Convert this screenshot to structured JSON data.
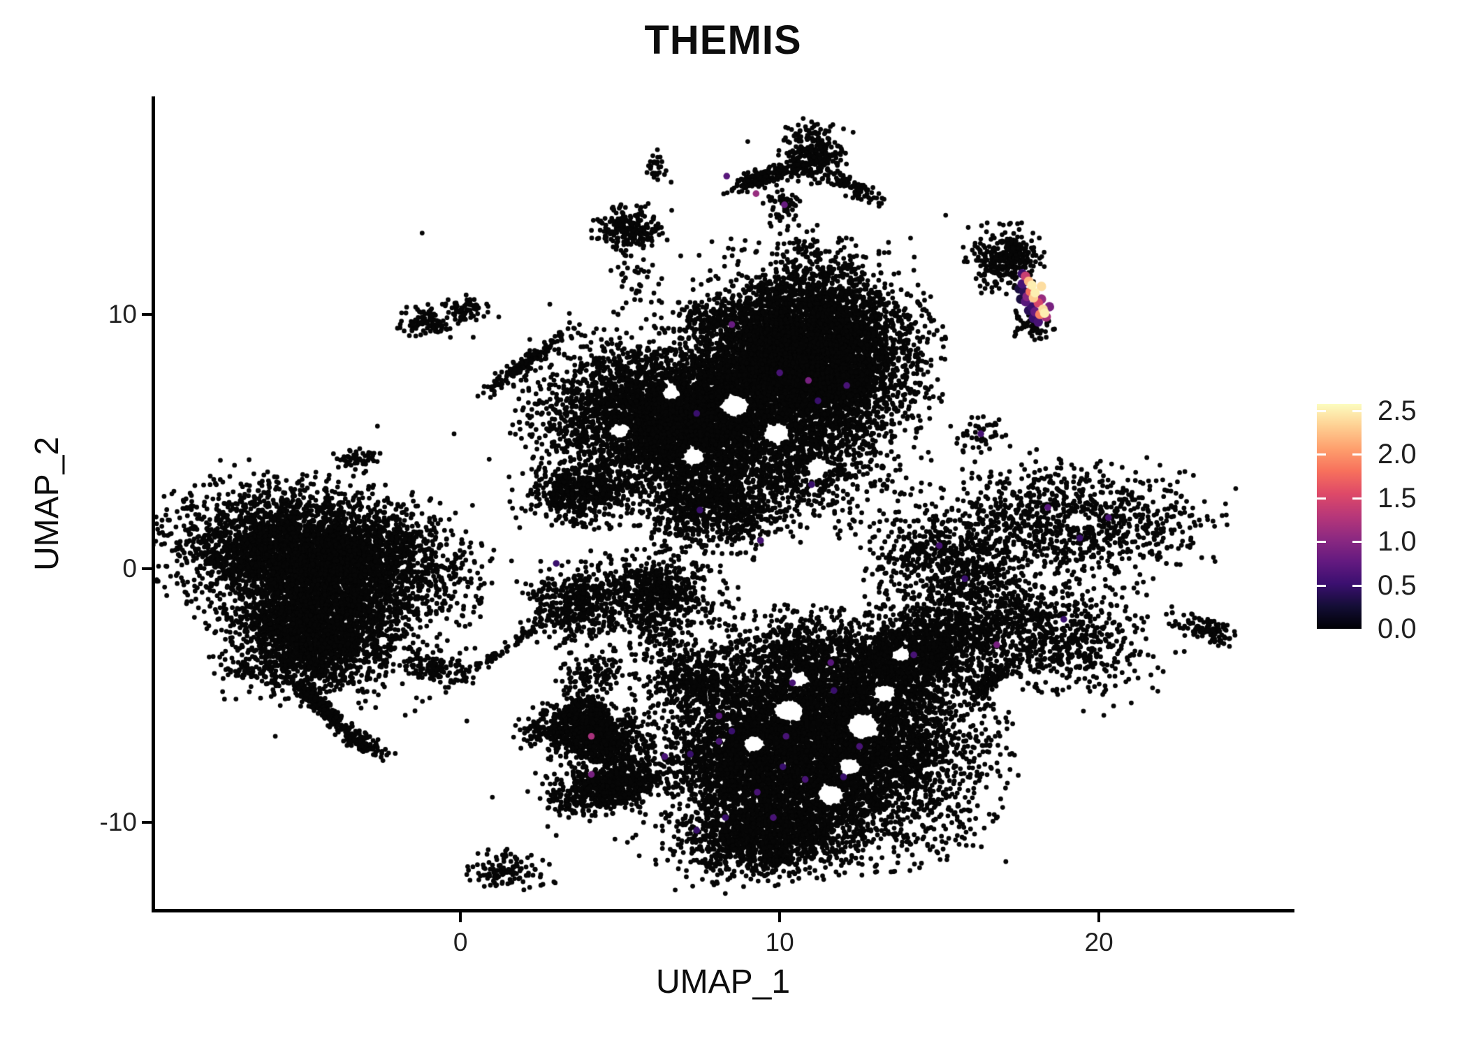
{
  "title": "THEMIS",
  "axes": {
    "x": {
      "label": "UMAP_1",
      "ticks": [
        0,
        10,
        20
      ]
    },
    "y": {
      "label": "UMAP_2",
      "ticks": [
        -10,
        0,
        10
      ]
    }
  },
  "legend": {
    "tick_labels": [
      "2.5",
      "2.0",
      "1.5",
      "1.0",
      "0.5",
      "0.0"
    ],
    "tick_values": [
      2.5,
      2.0,
      1.5,
      1.0,
      0.5,
      0.0
    ],
    "domain": [
      0,
      2.58
    ],
    "colormap": [
      "#000004",
      "#140e36",
      "#3b0f70",
      "#641a80",
      "#8c2981",
      "#b73779",
      "#de4968",
      "#f7705c",
      "#fe9f6d",
      "#fecf92",
      "#fcfdbf"
    ]
  },
  "chart_data": {
    "type": "scatter",
    "title": "THEMIS",
    "xlabel": "UMAP_1",
    "ylabel": "UMAP_2",
    "xlim": [
      -9.61,
      26.06
    ],
    "ylim": [
      -13.45,
      18.52
    ],
    "grid": false,
    "legend_position": "right",
    "point_color_zero": "#060606",
    "seed": 42,
    "clusters": [
      [
        6.1,
        15.9,
        0.14,
        0.28,
        0,
        28
      ],
      [
        9.5,
        15.4,
        0.62,
        0.17,
        20,
        170
      ],
      [
        11.0,
        16.3,
        0.48,
        0.52,
        0,
        280
      ],
      [
        12.2,
        15.1,
        0.55,
        0.16,
        -35,
        100
      ],
      [
        10.1,
        14.3,
        0.28,
        0.38,
        0,
        55
      ],
      [
        10.5,
        12.4,
        0.45,
        0.55,
        0,
        35
      ],
      [
        5.3,
        13.4,
        0.5,
        0.45,
        0,
        210
      ],
      [
        5.5,
        11.2,
        0.4,
        0.7,
        0,
        40
      ],
      [
        -1.0,
        9.7,
        0.42,
        0.3,
        0,
        95
      ],
      [
        0.1,
        10.2,
        0.35,
        0.25,
        0,
        70
      ],
      [
        2.0,
        8.0,
        0.85,
        0.15,
        42,
        150
      ],
      [
        -3.2,
        4.3,
        0.32,
        0.26,
        0,
        55
      ],
      [
        11.0,
        8.7,
        1.5,
        1.55,
        0,
        5200
      ],
      [
        6.3,
        5.9,
        1.75,
        1.4,
        -10,
        3900
      ],
      [
        8.7,
        7.4,
        1.0,
        1.0,
        0,
        800
      ],
      [
        10.3,
        4.6,
        1.6,
        1.25,
        0,
        1400
      ],
      [
        7.9,
        2.5,
        1.05,
        0.95,
        0,
        900
      ],
      [
        3.7,
        3.0,
        0.8,
        0.55,
        0,
        520
      ],
      [
        4.2,
        -6.6,
        0.8,
        0.55,
        -30,
        900
      ],
      [
        4.6,
        -8.6,
        0.9,
        0.45,
        15,
        700
      ],
      [
        3.9,
        -5.9,
        0.35,
        0.5,
        0,
        220
      ],
      [
        8.3,
        -7.6,
        0.6,
        0.8,
        0,
        450
      ],
      [
        11.3,
        -6.9,
        2.25,
        1.9,
        -5,
        7200
      ],
      [
        9.6,
        -10.4,
        1.3,
        0.8,
        10,
        1500
      ],
      [
        14.0,
        -3.6,
        1.55,
        0.85,
        35,
        1600
      ],
      [
        10.6,
        -3.4,
        1.15,
        0.85,
        0,
        480
      ],
      [
        7.4,
        -4.4,
        0.7,
        0.6,
        0,
        330
      ],
      [
        6.3,
        -2.6,
        0.5,
        0.7,
        0,
        120
      ],
      [
        -4.5,
        0.4,
        2.0,
        1.2,
        -12,
        4800
      ],
      [
        -4.6,
        -2.6,
        1.2,
        1.05,
        0,
        2200
      ],
      [
        -4.45,
        -5.3,
        0.78,
        0.13,
        -50,
        260
      ],
      [
        -3.0,
        -6.9,
        0.42,
        0.18,
        -35,
        90
      ],
      [
        -6.8,
        -4.0,
        0.26,
        0.18,
        0,
        38
      ],
      [
        -0.85,
        -3.9,
        0.55,
        0.32,
        -15,
        125
      ],
      [
        -0.9,
        -0.9,
        0.8,
        0.9,
        0,
        60
      ],
      [
        3.6,
        -1.5,
        0.78,
        0.72,
        0,
        430
      ],
      [
        6.1,
        -0.9,
        0.95,
        0.65,
        -10,
        600
      ],
      [
        2.5,
        -6.4,
        0.4,
        0.3,
        0,
        70
      ],
      [
        4.2,
        -4.1,
        0.5,
        0.4,
        0,
        115
      ],
      [
        1.4,
        -11.9,
        0.62,
        0.4,
        -10,
        115
      ],
      [
        1.3,
        -3.2,
        1.45,
        0.1,
        41,
        90
      ],
      [
        7.9,
        9.7,
        0.55,
        0.4,
        -20,
        150
      ],
      [
        11.0,
        7.0,
        1.3,
        0.75,
        -10,
        560
      ],
      [
        7.0,
        5.8,
        0.9,
        0.75,
        0,
        480
      ],
      [
        15.3,
        0.2,
        1.25,
        1.1,
        0,
        700
      ],
      [
        16.3,
        5.4,
        0.35,
        0.3,
        0,
        45
      ],
      [
        19.2,
        1.9,
        1.9,
        1.05,
        -5,
        950
      ],
      [
        18.2,
        -2.5,
        1.7,
        1.05,
        -15,
        900
      ],
      [
        16.65,
        -4.4,
        0.6,
        0.15,
        45,
        130
      ],
      [
        23.4,
        -2.4,
        0.5,
        0.22,
        -25,
        110
      ],
      [
        17.1,
        12.2,
        0.5,
        0.55,
        0,
        330
      ],
      [
        17.9,
        9.6,
        0.32,
        0.26,
        -30,
        60
      ]
    ],
    "voids": [
      [
        10.3,
        -5.6,
        0.45
      ],
      [
        12.6,
        -6.2,
        0.5
      ],
      [
        11.6,
        -8.9,
        0.42
      ],
      [
        9.2,
        -6.9,
        0.35
      ],
      [
        13.3,
        -4.9,
        0.35
      ],
      [
        10.6,
        -4.35,
        0.3
      ],
      [
        12.2,
        -7.8,
        0.35
      ],
      [
        8.6,
        6.4,
        0.45
      ],
      [
        9.9,
        5.3,
        0.4
      ],
      [
        7.3,
        4.4,
        0.35
      ],
      [
        6.6,
        6.9,
        0.3
      ],
      [
        11.2,
        4.0,
        0.35
      ],
      [
        5.0,
        5.4,
        0.3
      ],
      [
        19.3,
        1.9,
        0.3
      ],
      [
        13.8,
        -3.4,
        0.3
      ]
    ],
    "singles": [
      [
        -1.2,
        13.2
      ],
      [
        0.4,
        9.1
      ],
      [
        1.2,
        9.9
      ],
      [
        2.8,
        10.4
      ],
      [
        4.5,
        9.4
      ],
      [
        5.6,
        10.9
      ],
      [
        3.6,
        6.6
      ],
      [
        2.2,
        5.6
      ],
      [
        0.9,
        4.3
      ],
      [
        -0.2,
        5.3
      ],
      [
        -1.5,
        3.0
      ],
      [
        -2.6,
        5.6
      ],
      [
        -0.5,
        1.5
      ],
      [
        1.6,
        0.3
      ],
      [
        2.4,
        -2.9
      ],
      [
        5.3,
        -2.5
      ],
      [
        0.2,
        -6.0
      ],
      [
        1.0,
        -9.0
      ],
      [
        3.0,
        -10.5
      ],
      [
        5.6,
        -11.3
      ],
      [
        13.5,
        4.6
      ],
      [
        14.7,
        5.9
      ],
      [
        21.7,
        -0.4
      ],
      [
        22.4,
        -3.3
      ],
      [
        13.0,
        9.0
      ],
      [
        12.6,
        11.9
      ],
      [
        14.1,
        13.0
      ],
      [
        16.5,
        13.6
      ],
      [
        6.9,
        12.3
      ],
      [
        8.0,
        11.5
      ],
      [
        -5.8,
        -6.6
      ],
      [
        -7.6,
        -2.0
      ],
      [
        -8.7,
        -0.5
      ],
      [
        6.6,
        15.2
      ],
      [
        10.6,
        13.5
      ],
      [
        12.8,
        14.4
      ],
      [
        16.0,
        -5.5
      ],
      [
        14.8,
        -6.2
      ],
      [
        20.9,
        -3.6
      ],
      [
        21.3,
        3.4
      ],
      [
        12.2,
        2.2
      ],
      [
        13.2,
        0.8
      ],
      [
        12.8,
        -1.4
      ],
      [
        6.5,
        1.7
      ],
      [
        5.2,
        0.7
      ],
      [
        7.7,
        0.9
      ],
      [
        16.9,
        11.5
      ],
      [
        17.1,
        10.8
      ],
      [
        18.35,
        9.1
      ],
      [
        15.2,
        13.9
      ],
      [
        9.0,
        16.8
      ],
      [
        12.0,
        17.3
      ]
    ],
    "accent_points": [
      [
        8.34,
        15.44,
        0.7
      ],
      [
        9.26,
        14.75,
        1.1
      ],
      [
        10.15,
        14.31,
        0.8
      ],
      [
        8.5,
        9.6,
        0.8
      ],
      [
        10.0,
        7.7,
        0.6
      ],
      [
        10.9,
        7.4,
        0.9
      ],
      [
        11.2,
        6.6,
        0.5
      ],
      [
        12.1,
        7.2,
        0.6
      ],
      [
        7.4,
        6.1,
        0.5
      ],
      [
        15.0,
        0.9,
        0.6
      ],
      [
        15.8,
        -0.4,
        0.5
      ],
      [
        18.4,
        2.4,
        0.7
      ],
      [
        19.4,
        1.2,
        0.5
      ],
      [
        20.3,
        2.0,
        0.6
      ],
      [
        16.8,
        -3.0,
        0.9
      ],
      [
        18.9,
        -2.0,
        0.5
      ],
      [
        16.3,
        5.3,
        0.6
      ],
      [
        4.1,
        -6.6,
        1.2
      ],
      [
        6.4,
        -7.4,
        0.6
      ],
      [
        7.2,
        -7.3,
        0.5
      ],
      [
        8.1,
        -5.8,
        0.7
      ],
      [
        8.5,
        -6.4,
        0.5
      ],
      [
        8.1,
        -6.8,
        0.6
      ],
      [
        10.2,
        -6.6,
        0.6
      ],
      [
        11.6,
        -3.7,
        0.7
      ],
      [
        10.4,
        -4.5,
        0.6
      ],
      [
        11.7,
        -4.8,
        0.5
      ],
      [
        12.5,
        -7.0,
        0.6
      ],
      [
        12.0,
        -8.2,
        0.5
      ],
      [
        10.8,
        -8.3,
        0.6
      ],
      [
        10.1,
        -7.8,
        0.5
      ],
      [
        9.3,
        -8.8,
        0.6
      ],
      [
        8.3,
        -9.8,
        0.5
      ],
      [
        9.8,
        -9.8,
        0.6
      ],
      [
        7.4,
        -10.3,
        0.5
      ],
      [
        14.2,
        -3.4,
        0.6
      ],
      [
        4.1,
        -8.1,
        0.9
      ],
      [
        3.0,
        0.2,
        0.5
      ],
      [
        7.5,
        2.3,
        0.5
      ],
      [
        9.4,
        1.1,
        0.6
      ],
      [
        11.0,
        3.3,
        0.5
      ]
    ],
    "expression_points": [
      [
        17.7,
        11.5,
        1.4
      ],
      [
        17.8,
        11.3,
        2.2
      ],
      [
        17.9,
        11.15,
        2.5
      ],
      [
        18.2,
        11.1,
        2.4
      ],
      [
        17.85,
        10.9,
        1.8
      ],
      [
        18.0,
        10.85,
        2.5
      ],
      [
        17.75,
        10.7,
        1.0
      ],
      [
        17.95,
        10.65,
        2.3
      ],
      [
        17.6,
        11.2,
        0.6
      ],
      [
        17.65,
        10.9,
        0.4
      ],
      [
        17.7,
        10.5,
        0.7
      ],
      [
        17.9,
        10.3,
        0.5
      ],
      [
        18.1,
        10.45,
        1.5
      ],
      [
        18.25,
        10.2,
        2.4
      ],
      [
        18.3,
        10.05,
        2.5
      ],
      [
        18.15,
        10.0,
        1.9
      ],
      [
        18.0,
        10.1,
        0.8
      ],
      [
        18.35,
        9.9,
        1.2
      ],
      [
        17.95,
        9.85,
        0.5
      ],
      [
        18.1,
        9.7,
        0.6
      ],
      [
        17.5,
        11.0,
        0.3
      ],
      [
        17.55,
        10.6,
        0.3
      ],
      [
        18.45,
        10.3,
        0.9
      ],
      [
        17.8,
        10.15,
        0.4
      ],
      [
        18.2,
        10.6,
        1.1
      ],
      [
        17.6,
        11.6,
        0.5
      ]
    ]
  }
}
